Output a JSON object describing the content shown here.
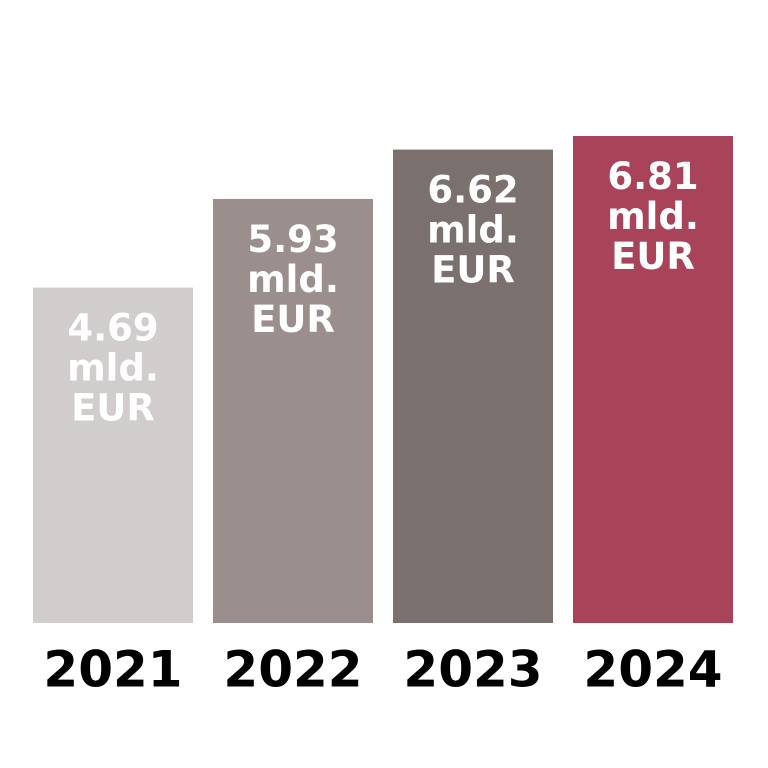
{
  "chart_data": {
    "type": "bar",
    "categories": [
      "2021",
      "2022",
      "2023",
      "2024"
    ],
    "values": [
      4.69,
      5.93,
      6.62,
      6.81
    ],
    "value_labels": [
      "4.69 mld. EUR",
      "5.93 mld. EUR",
      "6.62 mld. EUR",
      "6.81 mld. EUR"
    ],
    "colors": [
      "#d0cdcc",
      "#9a8f8d",
      "#7a706e",
      "#a8435a"
    ]
  }
}
